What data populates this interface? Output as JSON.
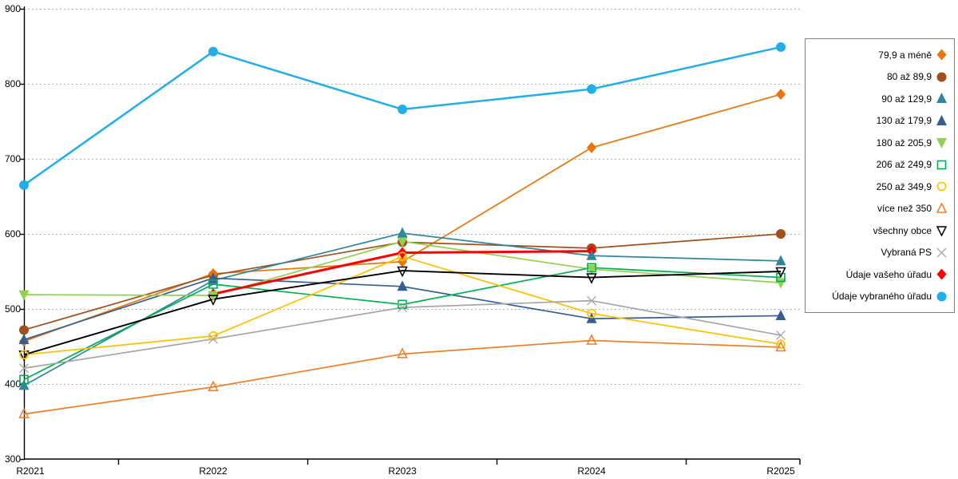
{
  "chart_data": {
    "type": "line",
    "categories": [
      "R2021",
      "R2022",
      "R2023",
      "R2024",
      "R2025"
    ],
    "series": [
      {
        "name": "79,9 a méně",
        "color": "#E8760C",
        "marker": "diamond",
        "values": [
          457,
          547,
          563,
          715,
          786
        ]
      },
      {
        "name": "80 až 89,9",
        "color": "#A0501E",
        "marker": "circle",
        "values": [
          472,
          545,
          589,
          581,
          600
        ]
      },
      {
        "name": "90 až 129,9",
        "color": "#31859C",
        "marker": "triangle-up",
        "values": [
          398,
          538,
          601,
          571,
          564
        ]
      },
      {
        "name": "130 až 179,9",
        "color": "#365F91",
        "marker": "triangle-up",
        "values": [
          459,
          541,
          530,
          487,
          491
        ]
      },
      {
        "name": "180 až 205,9",
        "color": "#92D050",
        "marker": "triangle-down",
        "values": [
          519,
          518,
          590,
          553,
          535
        ]
      },
      {
        "name": "206 až 249,9",
        "color": "#00B050",
        "marker": "square-open",
        "values": [
          406,
          533,
          506,
          555,
          542
        ]
      },
      {
        "name": "250 až 349,9",
        "color": "#FFC000",
        "marker": "circle-open",
        "values": [
          439,
          464,
          570,
          494,
          453
        ]
      },
      {
        "name": "více než 350",
        "color": "#F07E26",
        "marker": "triangle-up-open",
        "values": [
          360,
          396,
          440,
          458,
          449
        ]
      },
      {
        "name": "všechny obce",
        "color": "#000000",
        "marker": "triangle-down-open",
        "values": [
          439,
          513,
          551,
          542,
          550
        ]
      },
      {
        "name": "Vybraná PS",
        "color": "#A6A6A6",
        "marker": "x",
        "values": [
          421,
          460,
          502,
          511,
          465
        ]
      },
      {
        "name": "Údaje vašeho úřadu",
        "color": "#FF0000",
        "marker": "diamond",
        "values": [
          null,
          520,
          575,
          577,
          null
        ]
      },
      {
        "name": "Údaje vybraného úřadu",
        "color": "#22AEE8",
        "marker": "circle",
        "values": [
          665,
          843,
          766,
          793,
          849
        ]
      }
    ],
    "title": "",
    "xlabel": "",
    "ylabel": "",
    "ylim": [
      300,
      900
    ],
    "y_tick_labels": [
      "300",
      "400",
      "500",
      "600",
      "700",
      "800",
      "900"
    ],
    "grid": "horizontal-dotted",
    "legend_position": "right",
    "axis_color": "#000000",
    "grid_color": "#b3b3b3"
  }
}
